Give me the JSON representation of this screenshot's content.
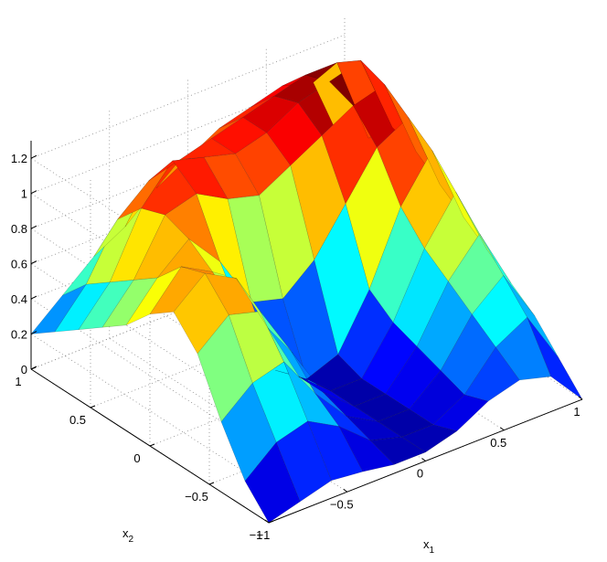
{
  "chart_data": {
    "type": "surface",
    "title": "",
    "xlabel": "x",
    "xlabel_sub": "1",
    "ylabel": "x",
    "ylabel_sub": "2",
    "zlabel": "",
    "xlim": [
      -1,
      1
    ],
    "ylim": [
      -1,
      1
    ],
    "zlim": [
      0,
      1.3
    ],
    "x_ticks": [
      -1,
      -0.5,
      0,
      0.5,
      1
    ],
    "x_tick_labels": [
      "−1",
      "−0.5",
      "0",
      "0.5",
      "1"
    ],
    "y_ticks": [
      -1,
      -0.5,
      0,
      0.5,
      1
    ],
    "y_tick_labels": [
      "−1",
      "−0.5",
      "0",
      "0.5",
      "1"
    ],
    "z_ticks": [
      0,
      0.2,
      0.4,
      0.6,
      0.8,
      1,
      1.2
    ],
    "z_tick_labels": [
      "0",
      "0.2",
      "0.4",
      "0.6",
      "0.8",
      "1",
      "1.2"
    ],
    "grid": true,
    "colormap": "jet",
    "surface_x": [
      -1,
      -0.8,
      -0.6,
      -0.4,
      -0.2,
      0,
      0.2,
      0.4,
      0.6,
      0.8,
      1
    ],
    "surface_y": [
      -1,
      -0.8,
      -0.6,
      -0.4,
      -0.2,
      0,
      0.2,
      0.4,
      0.6,
      0.8,
      1
    ],
    "surface_z": [
      [
        0.0,
        0.05,
        0.1,
        0.08,
        0.05,
        0.05,
        0.1,
        0.2,
        0.25,
        0.2,
        0.0
      ],
      [
        0.15,
        0.3,
        0.35,
        0.25,
        0.1,
        0.05,
        0.05,
        0.15,
        0.35,
        0.45,
        0.15
      ],
      [
        0.4,
        0.55,
        0.6,
        0.35,
        0.15,
        0.05,
        0.05,
        0.2,
        0.45,
        0.6,
        0.3
      ],
      [
        0.7,
        0.85,
        0.8,
        0.5,
        0.2,
        0.05,
        0.05,
        0.25,
        0.55,
        0.75,
        0.4
      ],
      [
        0.85,
        1.0,
        0.9,
        0.55,
        0.2,
        0.05,
        0.05,
        0.3,
        0.65,
        0.9,
        0.5
      ],
      [
        0.75,
        0.95,
        0.85,
        0.5,
        0.15,
        0.03,
        0.1,
        0.4,
        0.8,
        1.05,
        0.6
      ],
      [
        0.6,
        0.8,
        0.95,
        0.75,
        0.45,
        0.4,
        0.55,
        0.8,
        1.05,
        1.15,
        0.7
      ],
      [
        0.5,
        0.7,
        1.0,
        1.05,
        0.95,
        0.9,
        1.0,
        1.1,
        1.2,
        1.25,
        0.8
      ],
      [
        0.4,
        0.6,
        0.95,
        1.15,
        1.1,
        1.05,
        1.1,
        1.2,
        1.25,
        1.3,
        0.85
      ],
      [
        0.3,
        0.5,
        0.8,
        0.95,
        1.0,
        1.05,
        1.1,
        1.15,
        1.2,
        1.2,
        0.7
      ],
      [
        0.2,
        0.35,
        0.5,
        0.6,
        0.75,
        0.85,
        0.95,
        1.0,
        1.05,
        1.0,
        0.55
      ]
    ]
  }
}
